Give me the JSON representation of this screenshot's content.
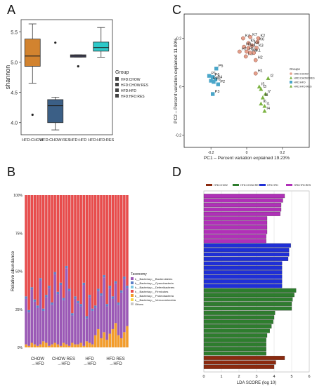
{
  "chart_data": [
    {
      "panel": "A",
      "type": "box",
      "ylabel": "shannon",
      "ylim": [
        3.8,
        5.7
      ],
      "yticks": [
        "4.0",
        "4.5",
        "5.0",
        "5.5"
      ],
      "legend_title": "Group",
      "legend_placement": "right",
      "categories": [
        "HFD:CHOW",
        "HFD:CHOW:RES",
        "HFD:HFD",
        "HFD:HFD:RES"
      ],
      "legend_entries": [
        "HFD:CHOW",
        "HFD:CHOW:RES",
        "HFD:HFD",
        "HFD:HFD:RES"
      ],
      "colors": [
        "#d2832f",
        "#3b5f86",
        "#484a66",
        "#2cc9c9"
      ],
      "boxes": [
        {
          "q1": 4.93,
          "median": 5.1,
          "q3": 5.38,
          "whisker_low": 4.65,
          "whisker_high": 5.63,
          "outliers": [
            4.13
          ]
        },
        {
          "q1": 4.0,
          "median": 4.28,
          "q3": 4.38,
          "whisker_low": 3.88,
          "whisker_high": 4.42,
          "outliers": [
            5.32
          ]
        },
        {
          "q1": 5.08,
          "median": 5.1,
          "q3": 5.12,
          "whisker_low": 5.08,
          "whisker_high": 5.12,
          "outliers": [
            4.93
          ]
        },
        {
          "q1": 5.18,
          "median": 5.24,
          "q3": 5.33,
          "whisker_low": 5.08,
          "whisker_high": 5.57,
          "outliers": []
        }
      ]
    },
    {
      "panel": "B",
      "type": "stacked-bar",
      "ylabel": "Relative abundance",
      "yticks": [
        "0%",
        "25%",
        "50%",
        "75%",
        "100%"
      ],
      "legend_title": "Taxonomy",
      "legend_placement": "right",
      "group_labels": [
        "CHOW\n→HFD",
        "CHOW RES\n→HFD",
        "HFD\n→HFD",
        "HFD RES\n→HFD"
      ],
      "series": [
        {
          "name": "k__Bacteria;p__Bacteroidetes",
          "color": "#9b59b6"
        },
        {
          "name": "k__Bacteria;p__Cyanobacteria",
          "color": "#5b7fc7"
        },
        {
          "name": "k__Bacteria;p__Deferribacteres",
          "color": "#7ec8e3"
        },
        {
          "name": "k__Bacteria;p__Firmicutes",
          "color": "#e84c4c"
        },
        {
          "name": "k__Bacteria;p__Proteobacteria",
          "color": "#f39c2b"
        },
        {
          "name": "k__Bacteria;p__Verrucomicrobia",
          "color": "#f7d84a"
        },
        {
          "name": "Others",
          "color": "#c8c8c8"
        }
      ],
      "bottoms_pct": [
        30,
        22,
        35,
        28,
        25,
        42,
        20,
        30,
        38,
        26,
        45,
        33,
        40,
        28,
        50,
        36,
        18,
        30,
        27,
        24,
        40,
        15,
        30,
        22,
        18,
        25,
        28,
        36,
        22,
        30,
        20,
        26,
        20,
        30,
        35,
        25
      ],
      "orange_pct": [
        2,
        1,
        3,
        2,
        1,
        2,
        4,
        3,
        1,
        2,
        3,
        2,
        1,
        3,
        2,
        1,
        3,
        2,
        2,
        3,
        1,
        4,
        3,
        2,
        8,
        12,
        6,
        10,
        5,
        9,
        12,
        16,
        8,
        6,
        10,
        14
      ]
    },
    {
      "panel": "C",
      "type": "scatter",
      "xlabel": "PC1 – Percent variation explained 19.23%",
      "ylabel": "PC2 – Percent variation explained 11.00%",
      "xlim": [
        -0.35,
        0.35
      ],
      "ylim": [
        -0.25,
        0.3
      ],
      "xticks": [
        -0.2,
        0,
        0.2
      ],
      "yticks": [
        -0.2,
        0,
        0.2
      ],
      "legend_title": "Groups",
      "legend_entries": [
        "HFD:CHOW",
        "HFD:CHOW:RES",
        "HFD:HFD",
        "HFD:HFD:RES"
      ],
      "series": [
        {
          "name": "HFD:CHOW",
          "marker": "circle",
          "color": "#e6a08c",
          "labels": [
            "K1",
            "K2",
            "K3",
            "K4",
            "K5",
            "K6",
            "K7",
            "K8"
          ],
          "x": [
            0.04,
            0.065,
            0.055,
            -0.02,
            0.01,
            0.06,
            0.02,
            0.03
          ],
          "y": [
            0.14,
            0.2,
            0.16,
            0.2,
            0.18,
            0.185,
            0.205,
            0.17
          ]
        },
        {
          "name": "HFD:CHOW:RES",
          "marker": "circle",
          "color": "#e6a08c",
          "labels": [
            "H1",
            "H2",
            "H3",
            "H4",
            "H5",
            "H6",
            "H7",
            "H8"
          ],
          "x": [
            0.05,
            0.05,
            -0.015,
            0.01,
            0.0,
            -0.005,
            -0.04,
            0.02
          ],
          "y": [
            0.055,
            0.11,
            0.165,
            0.16,
            0.145,
            0.125,
            0.145,
            0.14
          ]
        },
        {
          "name": "HFD:HFD",
          "marker": "triangle",
          "color": "#7cb342",
          "labels": [
            "I1",
            "I2",
            "I3",
            "I4",
            "I5",
            "I6",
            "I7",
            "I8"
          ],
          "x": [
            0.1,
            0.12,
            0.08,
            0.1,
            0.07,
            0.08,
            0.105,
            0.09
          ],
          "y": [
            -0.08,
            0.035,
            -0.01,
            -0.1,
            0.0,
            -0.07,
            -0.03,
            -0.045
          ]
        },
        {
          "name": "HFD:HFD:RES",
          "marker": "square",
          "color": "#4aa6c9",
          "labels": [
            "P1",
            "P2",
            "P3",
            "P4",
            "P5",
            "P6",
            "P7",
            "P8"
          ],
          "x": [
            -0.21,
            -0.16,
            -0.19,
            -0.175,
            -0.17,
            -0.19,
            -0.2,
            -0.185
          ],
          "y": [
            0.045,
            0.01,
            -0.03,
            0.03,
            0.075,
            0.04,
            0.025,
            0.02
          ]
        }
      ]
    },
    {
      "panel": "D",
      "type": "bar",
      "orientation": "horizontal",
      "xlabel": "LDA SCORE (log 10)",
      "xlim": [
        0,
        6
      ],
      "xticks": [
        0,
        1,
        2,
        3,
        4,
        5,
        6
      ],
      "legend_entries": [
        "HFD:CHOW",
        "HFD:CHOW:RES",
        "HFD:HFD",
        "HFD:HFD:RES"
      ],
      "colors": [
        "#8b2a0f",
        "#2e7d2e",
        "#1f2fd6",
        "#b030b8"
      ],
      "group_order_top_to_bottom": [
        "HFD:HFD:RES",
        "HFD:HFD",
        "HFD:CHOW:RES",
        "HFD:CHOW"
      ],
      "values": [
        {
          "group": "HFD:HFD:RES",
          "value": 4.6
        },
        {
          "group": "HFD:HFD:RES",
          "value": 4.5
        },
        {
          "group": "HFD:HFD:RES",
          "value": 4.4
        },
        {
          "group": "HFD:HFD:RES",
          "value": 4.4
        },
        {
          "group": "HFD:HFD:RES",
          "value": 4.35
        },
        {
          "group": "HFD:HFD:RES",
          "value": 3.6
        },
        {
          "group": "HFD:HFD:RES",
          "value": 3.6
        },
        {
          "group": "HFD:HFD:RES",
          "value": 3.6
        },
        {
          "group": "HFD:HFD:RES",
          "value": 3.6
        },
        {
          "group": "HFD:HFD:RES",
          "value": 3.55
        },
        {
          "group": "HFD:HFD:RES",
          "value": 3.55
        },
        {
          "group": "HFD:HFD",
          "value": 4.95
        },
        {
          "group": "HFD:HFD",
          "value": 4.85
        },
        {
          "group": "HFD:HFD",
          "value": 4.85
        },
        {
          "group": "HFD:HFD",
          "value": 4.8
        },
        {
          "group": "HFD:HFD",
          "value": 4.45
        },
        {
          "group": "HFD:HFD",
          "value": 4.45
        },
        {
          "group": "HFD:HFD",
          "value": 4.45
        },
        {
          "group": "HFD:HFD",
          "value": 4.45
        },
        {
          "group": "HFD:HFD",
          "value": 4.45
        },
        {
          "group": "HFD:HFD",
          "value": 4.45
        },
        {
          "group": "HFD:CHOW:RES",
          "value": 5.25
        },
        {
          "group": "HFD:CHOW:RES",
          "value": 5.15
        },
        {
          "group": "HFD:CHOW:RES",
          "value": 5.05
        },
        {
          "group": "HFD:CHOW:RES",
          "value": 5.0
        },
        {
          "group": "HFD:CHOW:RES",
          "value": 5.0
        },
        {
          "group": "HFD:CHOW:RES",
          "value": 4.05
        },
        {
          "group": "HFD:CHOW:RES",
          "value": 4.0
        },
        {
          "group": "HFD:CHOW:RES",
          "value": 3.95
        },
        {
          "group": "HFD:CHOW:RES",
          "value": 3.85
        },
        {
          "group": "HFD:CHOW:RES",
          "value": 3.75
        },
        {
          "group": "HFD:CHOW:RES",
          "value": 3.6
        },
        {
          "group": "HFD:CHOW:RES",
          "value": 3.55
        },
        {
          "group": "HFD:CHOW:RES",
          "value": 3.55
        },
        {
          "group": "HFD:CHOW:RES",
          "value": 3.55
        },
        {
          "group": "HFD:CHOW:RES",
          "value": 3.55
        },
        {
          "group": "HFD:CHOW",
          "value": 4.6
        },
        {
          "group": "HFD:CHOW",
          "value": 4.1
        },
        {
          "group": "HFD:CHOW",
          "value": 4.0
        }
      ]
    }
  ]
}
